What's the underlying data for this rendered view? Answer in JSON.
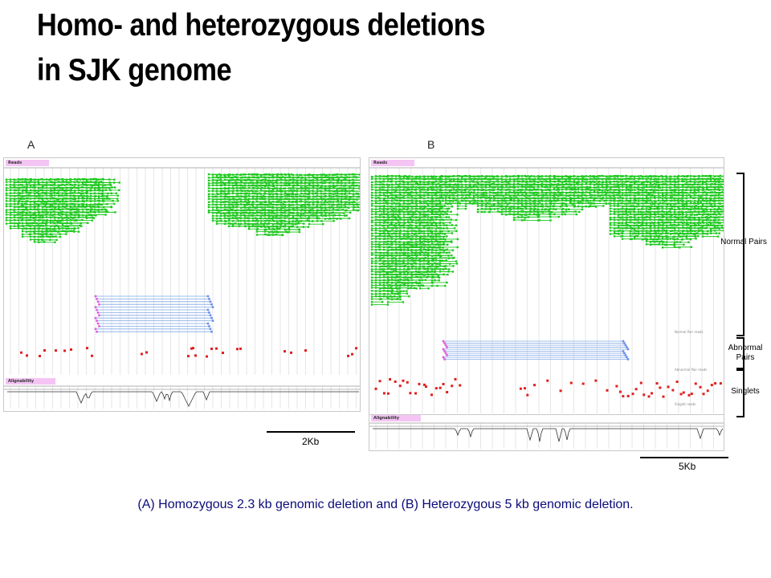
{
  "slide": {
    "title_line1": "Homo- and heterozygous deletions",
    "title_line2": "in SJK genome",
    "caption": "(A) Homozygous 2.3 kb genomic deletion and (B) Heterozygous 5 kb genomic deletion."
  },
  "panel_a": {
    "label": "A",
    "reads_tag": "Reads",
    "alignability_tag": "Alignability",
    "scale_label": "2Kb"
  },
  "panel_b": {
    "label": "B",
    "reads_tag": "Reads",
    "alignability_tag": "Alignability",
    "scale_label": "5Kb",
    "track_note_normal": "Normal Pair reads",
    "track_note_abnormal": "Abnormal Pair reads",
    "track_note_singlet": "Singlet reads"
  },
  "legend": {
    "normal_pairs": "Normal Pairs",
    "abnormal_pairs": "Abnormal Pairs",
    "singlets": "Singlets"
  },
  "colors": {
    "normal_read": "#1ec81e",
    "abnormal_link": "#7ea6e6",
    "abnormal_end_left": "#e05ae0",
    "abnormal_end_right": "#6a8ee8",
    "singlet": "#e02020",
    "caption": "#0b0b7a"
  }
}
